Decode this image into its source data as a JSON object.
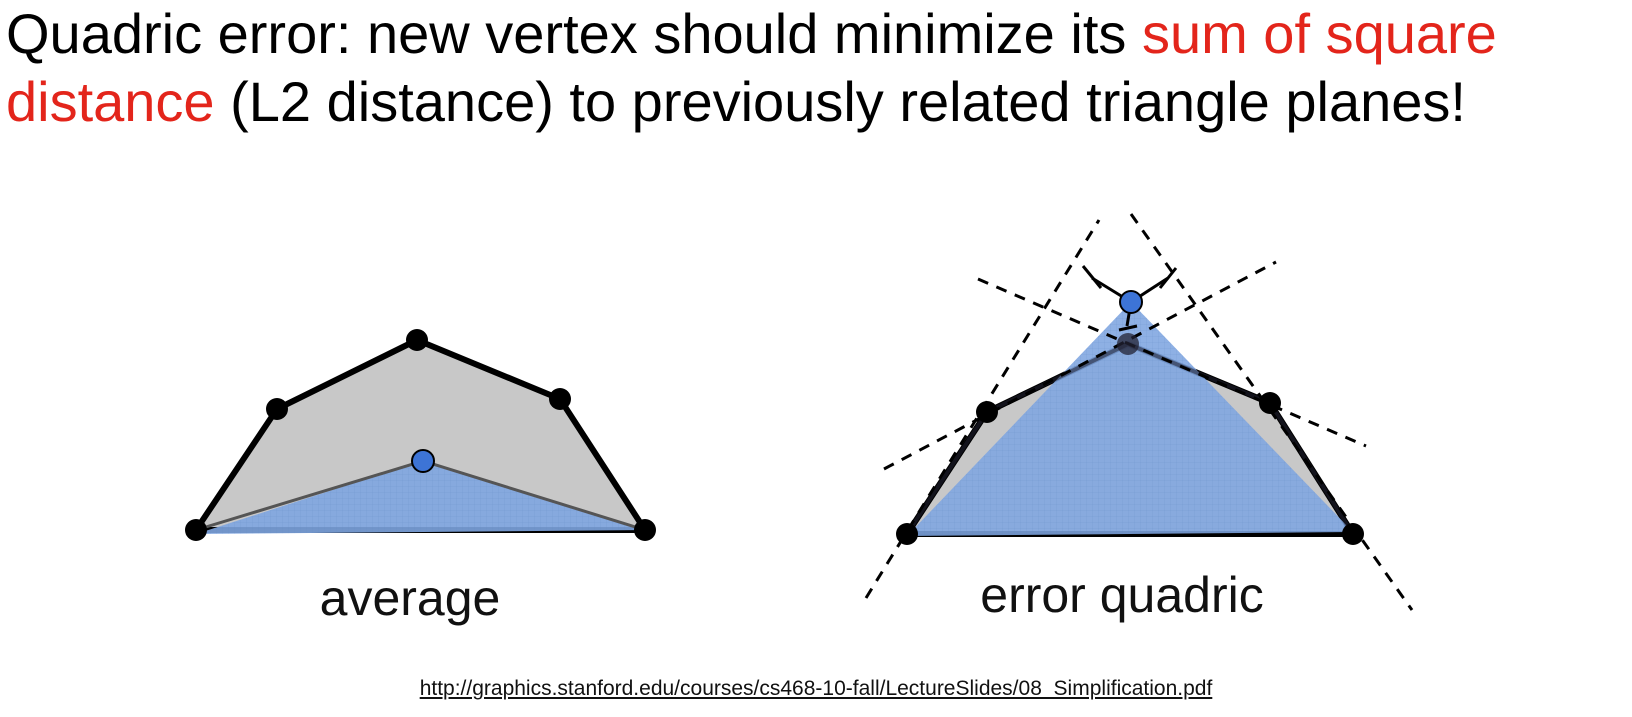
{
  "title": {
    "part1": "Quadric error: new vertex should minimize its ",
    "highlight1": "sum of square",
    "highlight2": "distance",
    "part2": " (L2 distance) to previously related triangle planes!"
  },
  "panels": {
    "left_label": "average",
    "right_label": "error quadric"
  },
  "source_url": "http://graphics.stanford.edu/courses/cs468-10-fall/LectureSlides/08_Simplification.pdf",
  "colors": {
    "highlight": "#e3251b",
    "mesh_fill": "#c8c8c8",
    "new_triangle_fill": "#7ea5e0",
    "new_vertex": "#3d74d6",
    "vertex": "#000000"
  }
}
